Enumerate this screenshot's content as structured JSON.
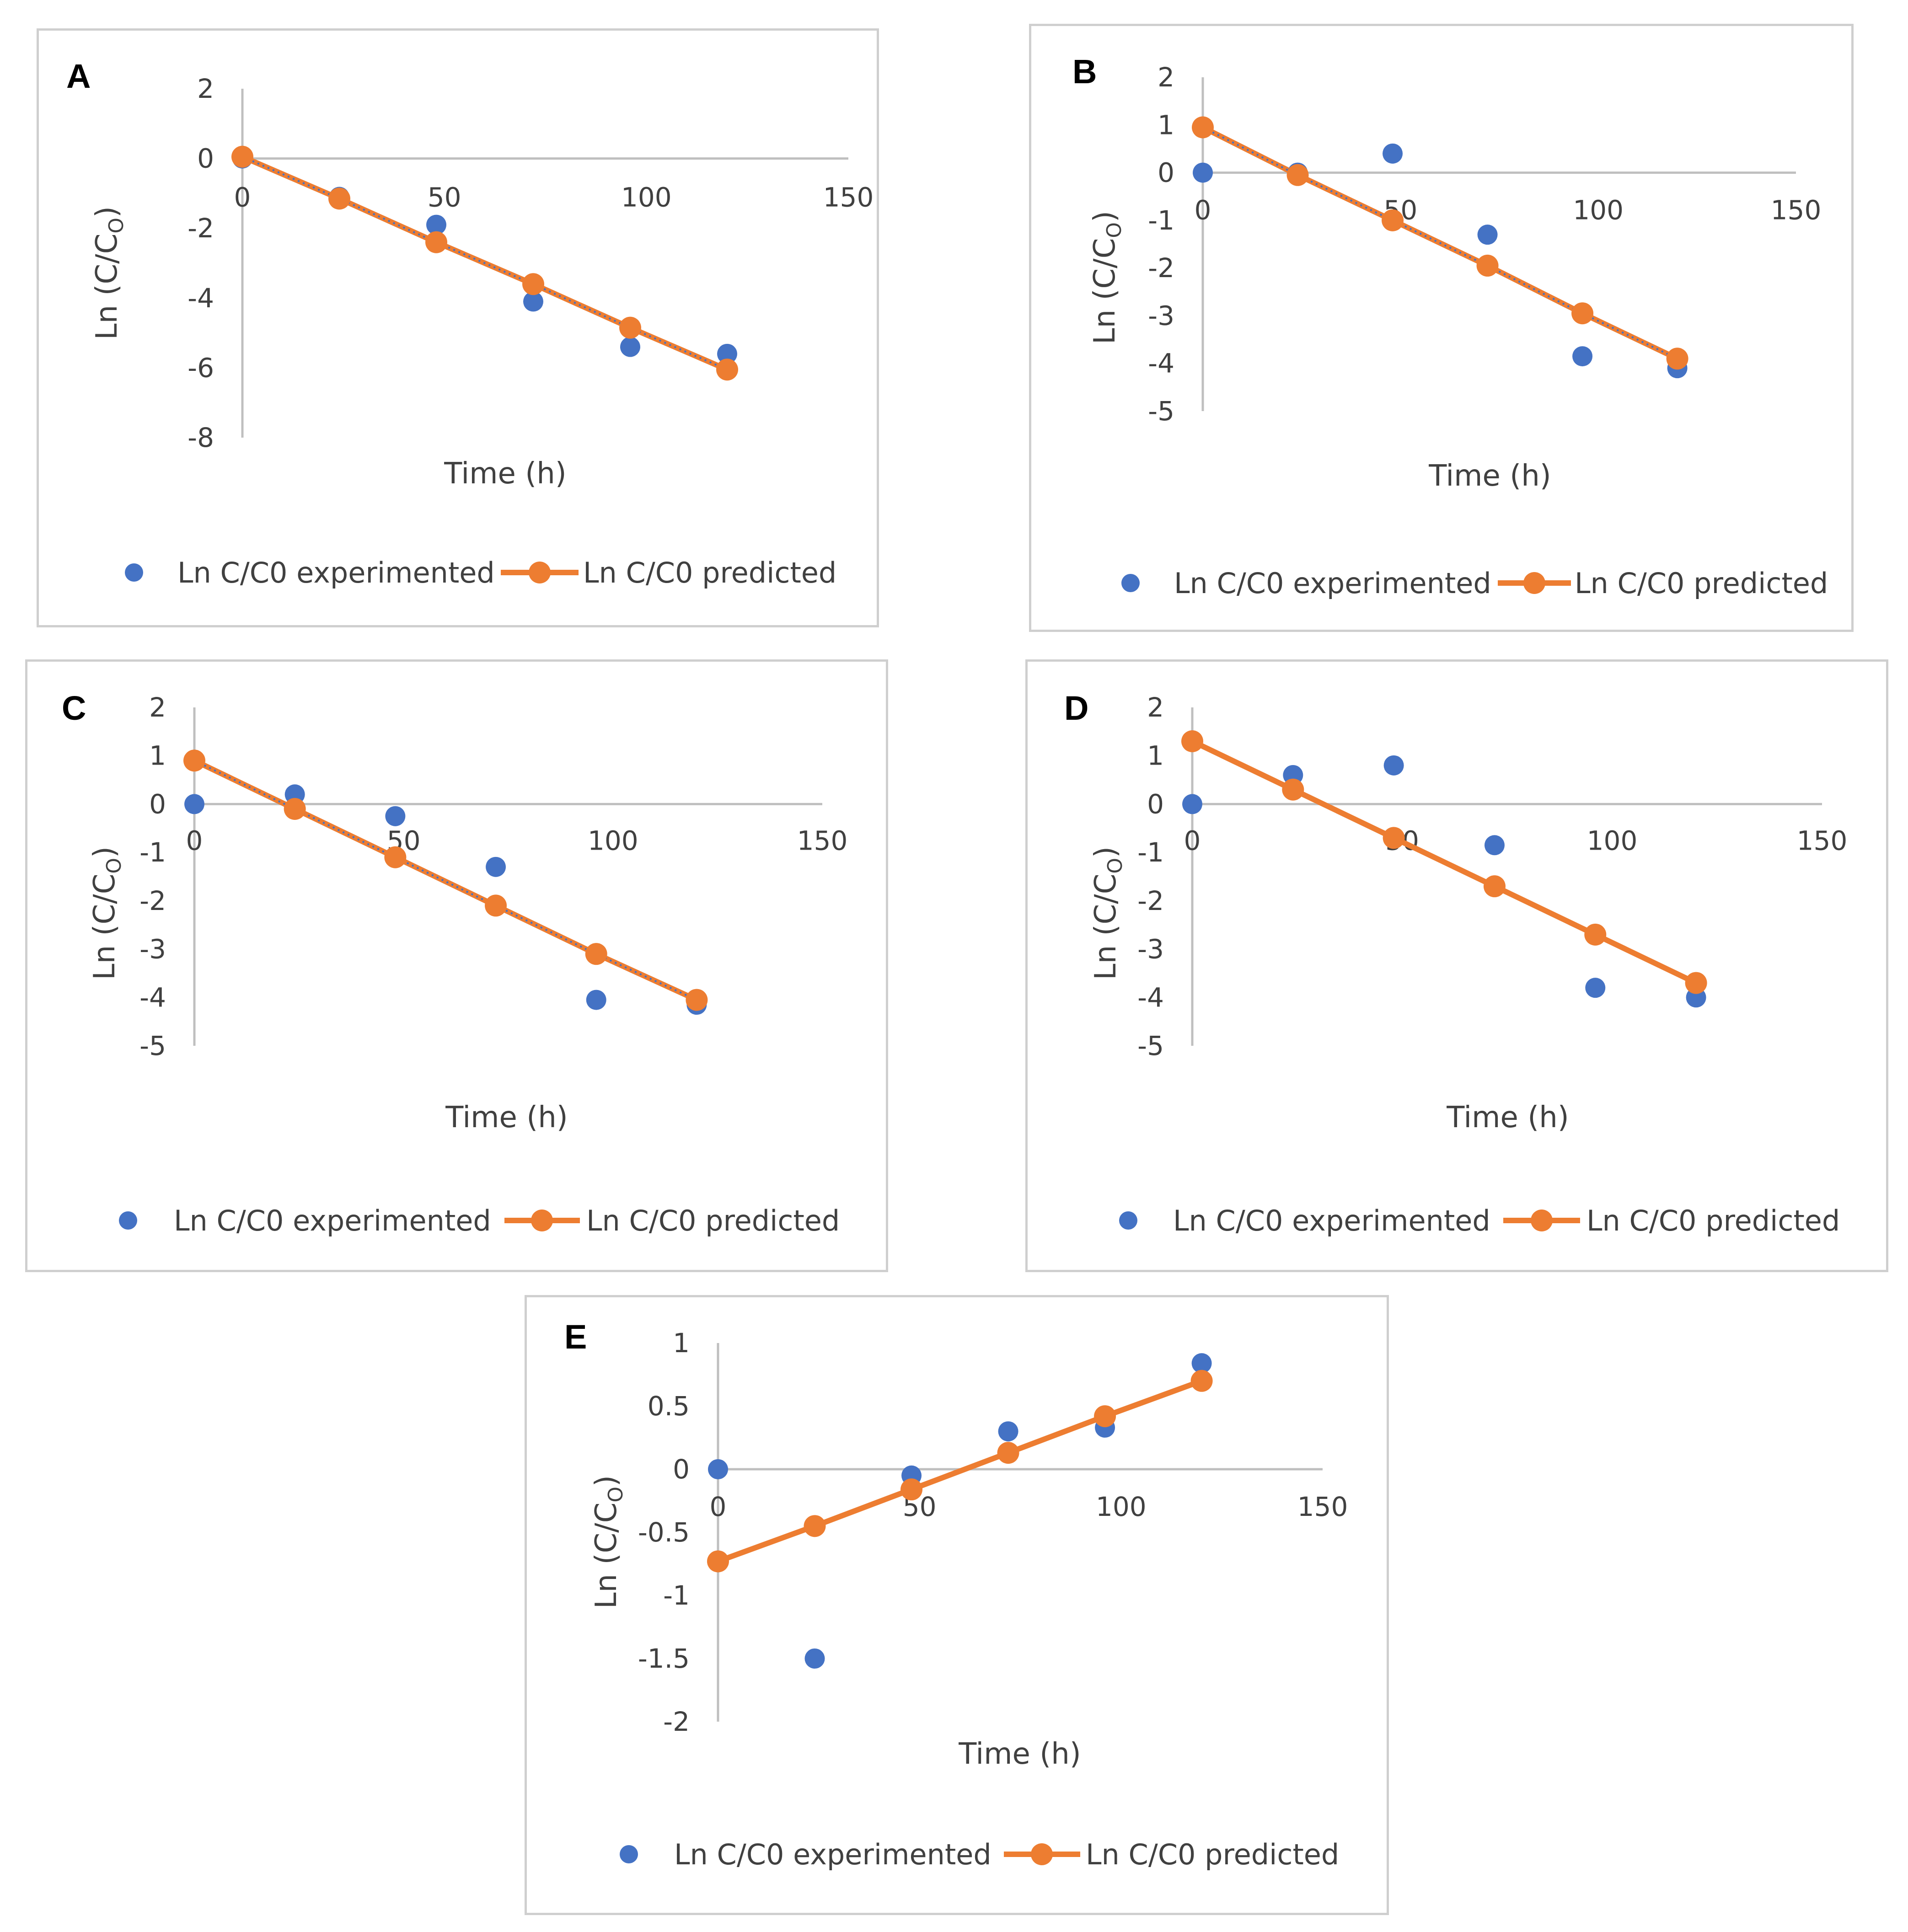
{
  "chart_data": [
    {
      "type": "scatter",
      "panel_label": "A",
      "xlabel": "Time (h)",
      "ylabel_main": "Ln (C/C",
      "ylabel_sub": "O",
      "ylabel_close": ")",
      "xlim": [
        0,
        150
      ],
      "ylim": [
        -8,
        2
      ],
      "x_ticks": [
        "0",
        "50",
        "100",
        "150"
      ],
      "y_ticks": [
        "2",
        "0",
        "-2",
        "-4",
        "-6",
        "-8"
      ],
      "y_tick_values": [
        2,
        0,
        -2,
        -4,
        -6,
        -8
      ],
      "dotted_line": true,
      "series": [
        {
          "name": "Ln C/C0 experimented",
          "x": [
            0,
            24,
            48,
            72,
            96,
            120
          ],
          "y": [
            0,
            -1.1,
            -1.9,
            -4.1,
            -5.4,
            -5.6
          ]
        },
        {
          "name": "Ln C/C0 predicted",
          "x": [
            0,
            24,
            48,
            72,
            96,
            120
          ],
          "y": [
            0.05,
            -1.15,
            -2.4,
            -3.6,
            -4.85,
            -6.05
          ]
        }
      ]
    },
    {
      "type": "scatter",
      "panel_label": "B",
      "xlabel": "Time (h)",
      "ylabel_main": "Ln (C/C",
      "ylabel_sub": "O",
      "ylabel_close": ")",
      "xlim": [
        0,
        150
      ],
      "ylim": [
        -5,
        2
      ],
      "x_ticks": [
        "0",
        "50",
        "100",
        "150"
      ],
      "y_ticks": [
        "2",
        "1",
        "0",
        "-1",
        "-2",
        "-3",
        "-4",
        "-5"
      ],
      "y_tick_values": [
        2,
        1,
        0,
        -1,
        -2,
        -3,
        -4,
        -5
      ],
      "dotted_line": true,
      "series": [
        {
          "name": "Ln C/C0 experimented",
          "x": [
            0,
            24,
            48,
            72,
            96,
            120
          ],
          "y": [
            0,
            0,
            0.4,
            -1.3,
            -3.85,
            -4.1
          ]
        },
        {
          "name": "Ln C/C0 predicted",
          "x": [
            0,
            24,
            48,
            72,
            96,
            120
          ],
          "y": [
            0.95,
            -0.05,
            -1.0,
            -1.95,
            -2.95,
            -3.9
          ]
        }
      ]
    },
    {
      "type": "scatter",
      "panel_label": "C",
      "xlabel": "Time (h)",
      "ylabel_main": "Ln (C/C",
      "ylabel_sub": "O",
      "ylabel_close": ")",
      "xlim": [
        0,
        150
      ],
      "ylim": [
        -5,
        2
      ],
      "x_ticks": [
        "0",
        "50",
        "100",
        "150"
      ],
      "y_ticks": [
        "2",
        "1",
        "0",
        "-1",
        "-2",
        "-3",
        "-4",
        "-5"
      ],
      "y_tick_values": [
        2,
        1,
        0,
        -1,
        -2,
        -3,
        -4,
        -5
      ],
      "dotted_line": true,
      "series": [
        {
          "name": "Ln C/C0 experimented",
          "x": [
            0,
            24,
            48,
            72,
            96,
            120
          ],
          "y": [
            0,
            0.2,
            -0.25,
            -1.3,
            -4.05,
            -4.15
          ]
        },
        {
          "name": "Ln C/C0 predicted",
          "x": [
            0,
            24,
            48,
            72,
            96,
            120
          ],
          "y": [
            0.9,
            -0.1,
            -1.1,
            -2.1,
            -3.1,
            -4.05
          ]
        }
      ]
    },
    {
      "type": "scatter",
      "panel_label": "D",
      "xlabel": "Time (h)",
      "ylabel_main": "Ln (C/C",
      "ylabel_sub": "O",
      "ylabel_close": ")",
      "xlim": [
        0,
        150
      ],
      "ylim": [
        -5,
        2
      ],
      "x_ticks": [
        "0",
        "50",
        "100",
        "150"
      ],
      "y_ticks": [
        "2",
        "1",
        "0",
        "-1",
        "-2",
        "-3",
        "-4",
        "-5"
      ],
      "y_tick_values": [
        2,
        1,
        0,
        -1,
        -2,
        -3,
        -4,
        -5
      ],
      "dotted_line": false,
      "series": [
        {
          "name": "Ln C/C0 experimented",
          "x": [
            0,
            24,
            48,
            72,
            96,
            120
          ],
          "y": [
            0,
            0.6,
            0.8,
            -0.85,
            -3.8,
            -4.0
          ]
        },
        {
          "name": "Ln C/C0 predicted",
          "x": [
            0,
            24,
            48,
            72,
            96,
            120
          ],
          "y": [
            1.3,
            0.3,
            -0.7,
            -1.7,
            -2.7,
            -3.7
          ]
        }
      ]
    },
    {
      "type": "scatter",
      "panel_label": "E",
      "xlabel": "Time (h)",
      "ylabel_main": "Ln (C/C",
      "ylabel_sub": "O",
      "ylabel_close": ")",
      "xlim": [
        0,
        150
      ],
      "ylim": [
        -2,
        1
      ],
      "x_ticks": [
        "0",
        "50",
        "100",
        "150"
      ],
      "y_ticks": [
        "1",
        "0.5",
        "0",
        "-0.5",
        "-1",
        "-1.5",
        "-2"
      ],
      "y_tick_values": [
        1,
        0.5,
        0,
        -0.5,
        -1,
        -1.5,
        -2
      ],
      "dotted_line": false,
      "series": [
        {
          "name": "Ln C/C0 experimented",
          "x": [
            0,
            24,
            48,
            72,
            96,
            120
          ],
          "y": [
            0,
            -1.5,
            -0.05,
            0.3,
            0.33,
            0.84
          ]
        },
        {
          "name": "Ln C/C0 predicted",
          "x": [
            0,
            24,
            48,
            72,
            96,
            120
          ],
          "y": [
            -0.73,
            -0.45,
            -0.16,
            0.13,
            0.42,
            0.7
          ]
        }
      ]
    }
  ],
  "colors": {
    "experimented": "#4472C4",
    "predicted": "#ED7D31",
    "axis": "#BFBFBF",
    "text": "#404040",
    "border": "#CFCFCF"
  }
}
